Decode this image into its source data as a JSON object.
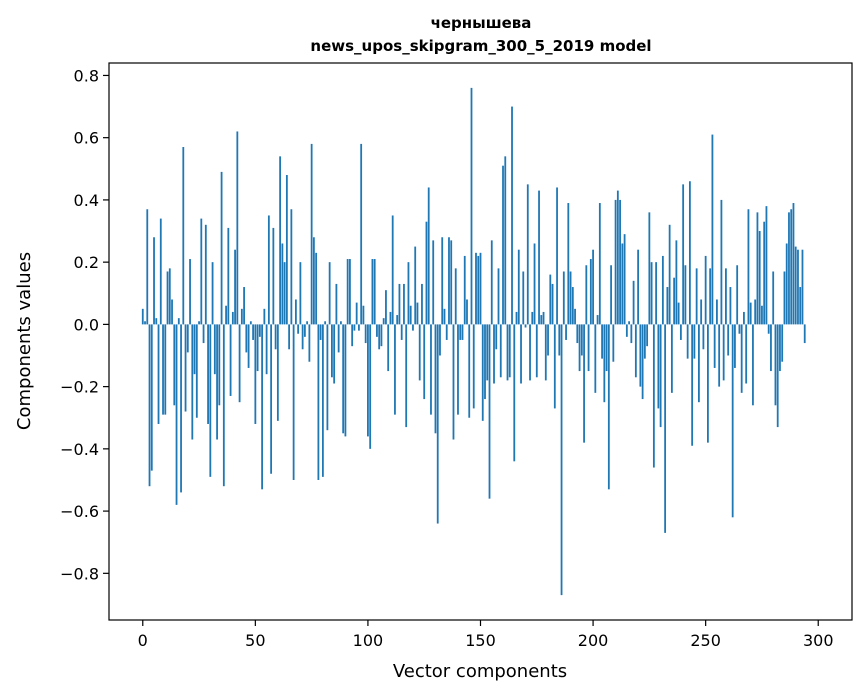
{
  "chart_data": {
    "type": "bar",
    "title": "чернышева",
    "subtitle": "news_upos_skipgram_300_5_2019 model",
    "xlabel": "Vector components",
    "ylabel": "Components values",
    "xlim": [
      -15,
      315
    ],
    "ylim": [
      -0.95,
      0.84
    ],
    "xticks": [
      0,
      50,
      100,
      150,
      200,
      250,
      300
    ],
    "xtick_labels": [
      "0",
      "50",
      "100",
      "150",
      "200",
      "250",
      "300"
    ],
    "yticks": [
      -0.8,
      -0.6,
      -0.4,
      -0.2,
      0.0,
      0.2,
      0.4,
      0.6,
      0.8
    ],
    "ytick_labels": [
      "−0.8",
      "−0.6",
      "−0.4",
      "−0.2",
      "0.0",
      "0.2",
      "0.4",
      "0.6",
      "0.8"
    ],
    "grid": false,
    "bar_color": "#1f77b4",
    "series": [
      {
        "values": [
          0.05,
          0.01,
          0.37,
          -0.52,
          -0.47,
          0.28,
          0.02,
          -0.32,
          0.34,
          -0.29,
          -0.29,
          0.17,
          0.18,
          0.08,
          -0.26,
          -0.58,
          0.02,
          -0.54,
          0.57,
          -0.28,
          -0.09,
          0.21,
          -0.37,
          -0.16,
          -0.3,
          0.01,
          0.34,
          -0.06,
          0.32,
          -0.32,
          -0.49,
          0.2,
          -0.16,
          -0.37,
          -0.26,
          0.49,
          -0.52,
          0.06,
          0.31,
          -0.23,
          0.04,
          0.24,
          0.62,
          -0.25,
          0.05,
          0.12,
          -0.09,
          -0.14,
          0.01,
          -0.05,
          -0.32,
          -0.15,
          -0.04,
          -0.53,
          0.05,
          -0.16,
          0.35,
          -0.48,
          0.31,
          -0.08,
          -0.31,
          0.54,
          0.26,
          0.2,
          0.48,
          -0.08,
          0.37,
          -0.5,
          0.08,
          -0.03,
          0.2,
          -0.08,
          -0.04,
          0.01,
          -0.12,
          0.58,
          0.28,
          0.23,
          -0.5,
          -0.05,
          -0.49,
          0.01,
          -0.34,
          0.2,
          -0.17,
          -0.19,
          0.13,
          -0.09,
          0.01,
          -0.35,
          -0.36,
          0.21,
          0.21,
          -0.07,
          -0.02,
          0.07,
          -0.02,
          0.58,
          0.06,
          -0.06,
          -0.36,
          -0.4,
          0.21,
          0.21,
          -0.04,
          -0.08,
          -0.07,
          0.02,
          0.11,
          -0.15,
          0.04,
          0.35,
          -0.29,
          0.03,
          0.13,
          -0.05,
          0.13,
          -0.33,
          0.2,
          0.06,
          -0.02,
          0.25,
          0.07,
          -0.18,
          0.13,
          -0.24,
          0.33,
          0.44,
          -0.29,
          0.27,
          -0.35,
          -0.64,
          -0.1,
          0.28,
          0.05,
          -0.05,
          0.28,
          0.27,
          -0.37,
          0.18,
          -0.29,
          -0.05,
          -0.05,
          0.22,
          0.08,
          -0.3,
          0.76,
          -0.27,
          0.23,
          0.22,
          0.23,
          -0.31,
          -0.24,
          -0.18,
          -0.56,
          0.27,
          -0.19,
          -0.08,
          0.18,
          -0.17,
          0.51,
          0.54,
          -0.18,
          -0.17,
          0.7,
          -0.44,
          0.04,
          0.24,
          -0.19,
          0.17,
          -0.01,
          0.45,
          -0.18,
          0.04,
          0.26,
          -0.17,
          0.43,
          0.03,
          0.04,
          -0.18,
          -0.1,
          0.16,
          0.13,
          -0.27,
          0.44,
          -0.1,
          -0.87,
          0.17,
          -0.05,
          0.39,
          0.17,
          0.12,
          0.05,
          -0.06,
          -0.15,
          -0.1,
          -0.38,
          0.19,
          -0.15,
          0.21,
          0.24,
          -0.22,
          0.03,
          0.39,
          -0.11,
          -0.25,
          -0.15,
          -0.53,
          0.19,
          -0.12,
          0.4,
          0.43,
          0.4,
          0.26,
          0.29,
          -0.04,
          0.01,
          -0.06,
          0.14,
          -0.17,
          0.24,
          -0.2,
          -0.24,
          -0.11,
          -0.07,
          0.36,
          0.2,
          -0.46,
          0.2,
          -0.27,
          -0.33,
          0.22,
          -0.67,
          0.12,
          0.32,
          -0.22,
          0.15,
          0.27,
          0.07,
          -0.05,
          0.45,
          0.19,
          -0.11,
          0.46,
          -0.39,
          -0.11,
          0.18,
          -0.25,
          0.08,
          -0.08,
          0.22,
          -0.38,
          0.18,
          0.61,
          -0.14,
          0.08,
          -0.2,
          0.4,
          -0.18,
          0.18,
          -0.1,
          0.12,
          -0.62,
          -0.14,
          0.19,
          -0.03,
          -0.22,
          0.04,
          -0.19,
          0.37,
          0.07,
          -0.26,
          0.08,
          0.36,
          0.3,
          0.06,
          0.33,
          0.38,
          -0.03,
          -0.15,
          0.17,
          -0.26,
          -0.33,
          -0.15,
          -0.12,
          0.17,
          0.26,
          0.36,
          0.37,
          0.39,
          0.25,
          0.24,
          0.12,
          0.24,
          -0.06
        ]
      }
    ]
  }
}
